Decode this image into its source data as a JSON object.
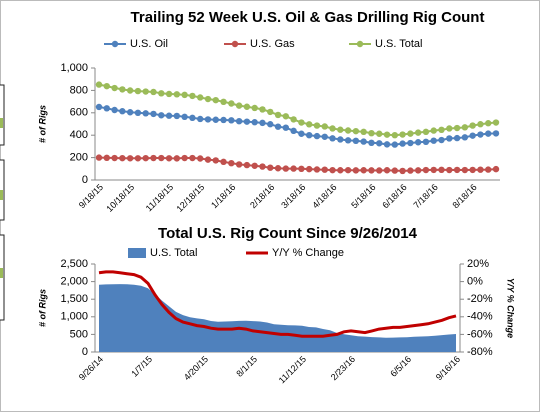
{
  "chart_data": [
    {
      "type": "line",
      "title": "Trailing 52 Week U.S. Oil & Gas Drilling Rig Count",
      "ylabel": "# of Rigs",
      "categories": [
        "9/18/15",
        null,
        null,
        null,
        "10/18/15",
        null,
        null,
        null,
        null,
        "11/18/15",
        null,
        null,
        null,
        "12/18/15",
        null,
        null,
        null,
        "1/18/16",
        null,
        null,
        null,
        null,
        "2/18/16",
        null,
        null,
        null,
        "3/18/16",
        null,
        null,
        null,
        "4/18/16",
        null,
        null,
        null,
        null,
        "5/18/16",
        null,
        null,
        null,
        "6/18/16",
        null,
        null,
        null,
        "7/18/16",
        null,
        null,
        null,
        null,
        "8/18/16",
        null,
        null,
        null
      ],
      "series": [
        {
          "name": "U.S. Oil",
          "color": "#4f81bd",
          "values": [
            652,
            640,
            625,
            614,
            605,
            600,
            595,
            590,
            578,
            574,
            572,
            564,
            555,
            545,
            541,
            538,
            536,
            533,
            525,
            521,
            516,
            510,
            498,
            476,
            467,
            439,
            413,
            400,
            392,
            386,
            372,
            362,
            354,
            350,
            343,
            332,
            328,
            318,
            316,
            325,
            330,
            337,
            341,
            351,
            357,
            371,
            374,
            381,
            396,
            406,
            414,
            416
          ]
        },
        {
          "name": "U.S. Gas",
          "color": "#c0504d",
          "values": [
            200,
            198,
            196,
            195,
            194,
            194,
            195,
            196,
            196,
            194,
            193,
            196,
            196,
            192,
            182,
            175,
            162,
            150,
            139,
            133,
            127,
            120,
            110,
            105,
            102,
            102,
            100,
            97,
            94,
            92,
            88,
            87,
            88,
            86,
            87,
            86,
            85,
            87,
            84,
            81,
            84,
            86,
            89,
            90,
            91,
            89,
            90,
            89,
            90,
            92,
            93,
            97
          ]
        },
        {
          "name": "U.S. Total",
          "color": "#9bbb59",
          "values": [
            852,
            838,
            821,
            809,
            799,
            794,
            790,
            786,
            774,
            768,
            765,
            760,
            751,
            737,
            723,
            713,
            698,
            683,
            664,
            654,
            643,
            630,
            608,
            581,
            569,
            541,
            513,
            497,
            486,
            478,
            460,
            449,
            442,
            436,
            430,
            418,
            413,
            405,
            400,
            406,
            414,
            423,
            430,
            441,
            448,
            460,
            464,
            470,
            486,
            498,
            507,
            513
          ]
        }
      ],
      "ylim": [
        0,
        1000
      ],
      "yticks": [
        0,
        200,
        400,
        600,
        800,
        {
          "value": 1000,
          "label": "1,000"
        }
      ]
    },
    {
      "type": "combo",
      "title": "Total U.S. Rig Count Since 9/26/2014",
      "ylabel": "# of Rigs",
      "y2label": "Y/Y % Change",
      "categories": [
        "9/26/14",
        null,
        null,
        null,
        null,
        null,
        null,
        "1/7/15",
        null,
        null,
        null,
        null,
        null,
        null,
        null,
        "4/20/15",
        null,
        null,
        null,
        null,
        null,
        null,
        "8/1/15",
        null,
        null,
        null,
        null,
        null,
        null,
        "11/12/15",
        null,
        null,
        null,
        null,
        null,
        null,
        "2/23/16",
        null,
        null,
        null,
        null,
        null,
        null,
        null,
        "6/5/16",
        null,
        null,
        null,
        null,
        null,
        null,
        "9/16/16"
      ],
      "series": [
        {
          "name": "U.S. Total",
          "kind": "area",
          "color": "#4f81bd",
          "values": [
            1910,
            1920,
            1925,
            1930,
            1925,
            1910,
            1880,
            1811,
            1640,
            1460,
            1300,
            1140,
            1048,
            988,
            954,
            932,
            880,
            861,
            866,
            876,
            884,
            885,
            877,
            866,
            838,
            791,
            775,
            760,
            757,
            748,
            709,
            698,
            654,
            619,
            541,
            502,
            476,
            450,
            437,
            424,
            415,
            406,
            408,
            414,
            421,
            431,
            440,
            447,
            464,
            481,
            496,
            510
          ]
        },
        {
          "name": "Y/Y % Change",
          "kind": "line",
          "axis": "y2",
          "color": "#c00000",
          "values": [
            10,
            11,
            11,
            10,
            9,
            8,
            5,
            -2,
            -15,
            -26,
            -35,
            -42,
            -46,
            -48,
            -50,
            -51,
            -53,
            -54,
            -54,
            -54,
            -53,
            -54,
            -56,
            -57,
            -58,
            -59,
            -60,
            -60,
            -61,
            -62,
            -62,
            -62,
            -62,
            -61,
            -60,
            -57,
            -56,
            -57,
            -58,
            -56,
            -54,
            -53,
            -52,
            -52,
            -51,
            -50,
            -49,
            -48,
            -46,
            -44,
            -41,
            -39
          ]
        }
      ],
      "ylim": [
        0,
        2500
      ],
      "yticks": [
        0,
        500,
        {
          "value": 1000,
          "label": "1,000"
        },
        {
          "value": 1500,
          "label": "1,500"
        },
        {
          "value": 2000,
          "label": "2,000"
        },
        {
          "value": 2500,
          "label": "2,500"
        }
      ],
      "y2lim": [
        -80,
        20
      ],
      "y2ticks": [
        {
          "value": -80,
          "label": "-80%"
        },
        {
          "value": -60,
          "label": "-60%"
        },
        {
          "value": -40,
          "label": "-40%"
        },
        {
          "value": -20,
          "label": "-20%"
        },
        {
          "value": 0,
          "label": "0%"
        },
        {
          "value": 20,
          "label": "20%"
        }
      ]
    }
  ]
}
